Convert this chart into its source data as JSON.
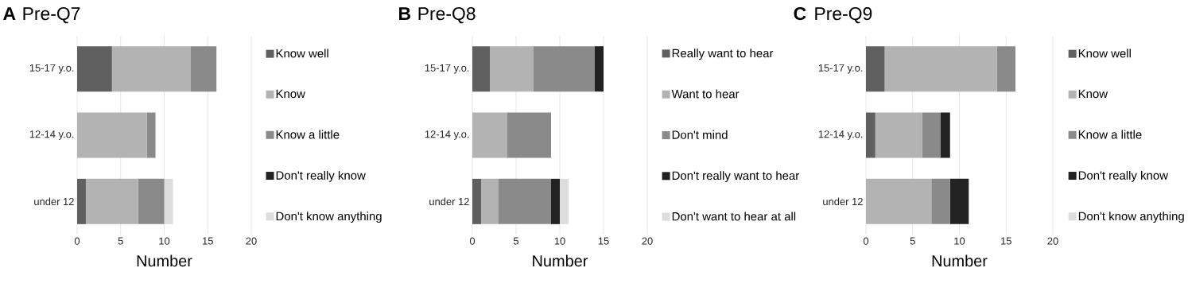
{
  "chart_data": [
    {
      "type": "bar",
      "orientation": "horizontal",
      "stacked": true,
      "title": "Pre-Q7",
      "annotations": [
        "A"
      ],
      "xlabel": "Number",
      "categories": [
        "15-17 y.o.",
        "12-14 y.o.",
        "under 12"
      ],
      "xlim": [
        0,
        20
      ],
      "xticks": [
        0,
        5,
        10,
        15,
        20
      ],
      "grid": "x",
      "legend": "right",
      "series": [
        {
          "name": "Know well",
          "color": "#606060",
          "values": [
            4,
            0,
            1
          ]
        },
        {
          "name": "Know",
          "color": "#b3b3b3",
          "values": [
            9,
            8,
            6
          ]
        },
        {
          "name": "Know a little",
          "color": "#8a8a8a",
          "values": [
            3,
            1,
            3
          ]
        },
        {
          "name": "Don't really know",
          "color": "#222222",
          "values": [
            0,
            0,
            0
          ]
        },
        {
          "name": "Don't know anything",
          "color": "#dddddd",
          "values": [
            0,
            0,
            1
          ]
        }
      ]
    },
    {
      "type": "bar",
      "orientation": "horizontal",
      "stacked": true,
      "title": "Pre-Q8",
      "annotations": [
        "B"
      ],
      "xlabel": "Number",
      "categories": [
        "15-17 y.o.",
        "12-14 y.o.",
        "under 12"
      ],
      "xlim": [
        0,
        20
      ],
      "xticks": [
        0,
        5,
        10,
        15,
        20
      ],
      "grid": "x",
      "legend": "right",
      "series": [
        {
          "name": "Really want to hear",
          "color": "#606060",
          "values": [
            2,
            0,
            1
          ]
        },
        {
          "name": "Want to hear",
          "color": "#b3b3b3",
          "values": [
            5,
            4,
            2
          ]
        },
        {
          "name": "Don't mind",
          "color": "#8a8a8a",
          "values": [
            7,
            5,
            6
          ]
        },
        {
          "name": "Don't really want to hear",
          "color": "#222222",
          "values": [
            1,
            0,
            1
          ]
        },
        {
          "name": "Don't want to hear at all",
          "color": "#dddddd",
          "values": [
            0,
            0,
            1
          ]
        }
      ]
    },
    {
      "type": "bar",
      "orientation": "horizontal",
      "stacked": true,
      "title": "Pre-Q9",
      "annotations": [
        "C"
      ],
      "xlabel": "Number",
      "categories": [
        "15-17 y.o.",
        "12-14 y.o.",
        "under 12"
      ],
      "xlim": [
        0,
        20
      ],
      "xticks": [
        0,
        5,
        10,
        15,
        20
      ],
      "grid": "x",
      "legend": "right",
      "series": [
        {
          "name": "Know well",
          "color": "#606060",
          "values": [
            2,
            1,
            0
          ]
        },
        {
          "name": "Know",
          "color": "#b3b3b3",
          "values": [
            12,
            5,
            7
          ]
        },
        {
          "name": "Know a little",
          "color": "#8a8a8a",
          "values": [
            2,
            2,
            2
          ]
        },
        {
          "name": "Don't really know",
          "color": "#222222",
          "values": [
            0,
            1,
            2
          ]
        },
        {
          "name": "Don't know anything",
          "color": "#dddddd",
          "values": [
            0,
            0,
            0
          ]
        }
      ]
    }
  ]
}
